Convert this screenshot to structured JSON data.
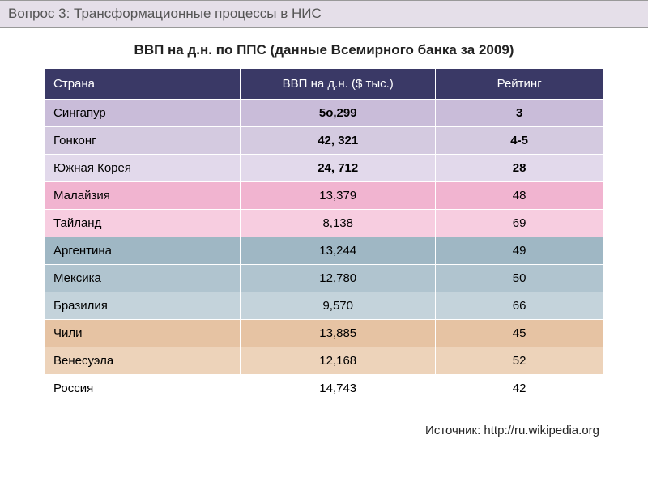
{
  "header": {
    "text": "Вопрос 3:  Трансформационные процессы в НИС"
  },
  "title": "ВВП на д.н. по ППС (данные Всемирного банка за 2009)",
  "table": {
    "columns": [
      "Страна",
      "ВВП на д.н. ($ тыс.)",
      "Рейтинг"
    ],
    "column_widths": [
      "35%",
      "35%",
      "30%"
    ],
    "header_bg": "#3a3966",
    "header_color": "#ffffff",
    "rows": [
      {
        "cells": [
          "Сингапур",
          "5о,299",
          "3"
        ],
        "bg": "#c9bcd9",
        "bold": true
      },
      {
        "cells": [
          "Гонконг",
          "42, 321",
          "4-5"
        ],
        "bg": "#d4cae0",
        "bold": true
      },
      {
        "cells": [
          "Южная Корея",
          "24, 712",
          "28"
        ],
        "bg": "#e2d9eb",
        "bold": true
      },
      {
        "cells": [
          "Малайзия",
          "13,379",
          "48"
        ],
        "bg": "#f1b4d0",
        "bold": false
      },
      {
        "cells": [
          "Тайланд",
          "8,138",
          "69"
        ],
        "bg": "#f7cde0",
        "bold": false
      },
      {
        "cells": [
          "Аргентина",
          "13,244",
          "49"
        ],
        "bg": "#9fb7c4",
        "bold": false
      },
      {
        "cells": [
          "Мексика",
          "12,780",
          "50"
        ],
        "bg": "#b0c4cf",
        "bold": false
      },
      {
        "cells": [
          "Бразилия",
          "9,570",
          "66"
        ],
        "bg": "#c4d3db",
        "bold": false
      },
      {
        "cells": [
          "Чили",
          "13,885",
          "45"
        ],
        "bg": "#e6c3a3",
        "bold": false
      },
      {
        "cells": [
          "Венесуэла",
          "12,168",
          "52"
        ],
        "bg": "#edd3ba",
        "bold": false
      },
      {
        "cells": [
          "Россия",
          "14,743",
          "42"
        ],
        "bg": "#ffffff",
        "bold": false
      }
    ]
  },
  "source": {
    "prefix": "Источник: ",
    "url": "http://ru.wikipedia.org"
  },
  "colors": {
    "header_bar_bg": "#e5dfe9",
    "page_bg": "#ffffff",
    "text": "#222222"
  }
}
